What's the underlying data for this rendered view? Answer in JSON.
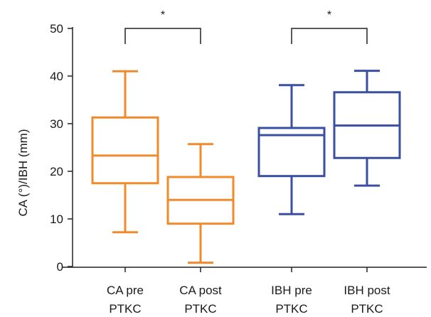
{
  "chart_data": {
    "type": "box",
    "title": "",
    "xlabel": "",
    "ylabel": "CA (°)/IBH (mm)",
    "ylim": [
      0,
      50
    ],
    "yticks": [
      0,
      10,
      20,
      30,
      40,
      50
    ],
    "grid": false,
    "categories": [
      {
        "line1": "CA pre",
        "line2": "PTKC"
      },
      {
        "line1": "CA post",
        "line2": "PTKC"
      },
      {
        "line1": "IBH pre",
        "line2": "PTKC"
      },
      {
        "line1": "IBH post",
        "line2": "PTKC"
      }
    ],
    "series": [
      {
        "min": 7.2,
        "q1": 17.5,
        "median": 23.3,
        "q3": 31.3,
        "max": 41.0,
        "color": "#F08A2B"
      },
      {
        "min": 0.8,
        "q1": 9.0,
        "median": 14.0,
        "q3": 18.8,
        "max": 25.7,
        "color": "#F08A2B"
      },
      {
        "min": 11.0,
        "q1": 19.0,
        "median": 27.6,
        "q3": 29.1,
        "max": 38.1,
        "color": "#3A4FA0"
      },
      {
        "min": 17.0,
        "q1": 22.8,
        "median": 29.6,
        "q3": 36.6,
        "max": 41.1,
        "color": "#3A4FA0"
      }
    ],
    "significance": [
      {
        "from": 0,
        "to": 1,
        "label": "*"
      },
      {
        "from": 2,
        "to": 3,
        "label": "*"
      }
    ]
  }
}
